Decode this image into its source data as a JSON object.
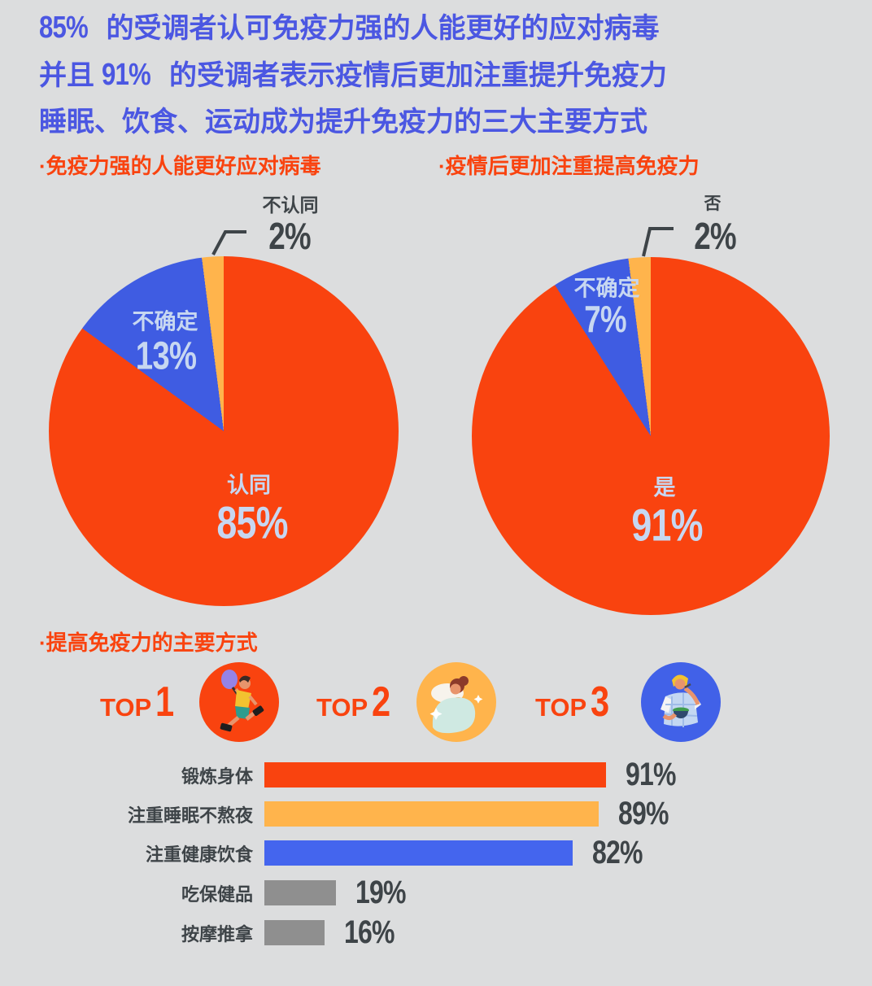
{
  "colors": {
    "background": "#DCDDDE",
    "title_blue": "#4B57E2",
    "accent_orange": "#F9430F",
    "pie_blue": "#3F5CE2",
    "bar_blue": "#4465EE",
    "yellow": "#FFB44C",
    "gray_bar": "#8F8F8F",
    "dark_text": "#3E4448",
    "light_text": "#C7D7F1"
  },
  "title": {
    "line1_num": "85%",
    "line1_text": " 的受调者认可免疫力强的人能更好的应对病毒",
    "line2_pre": "并且 ",
    "line2_num": "91%",
    "line2_text": " 的受调者表示疫情后更加注重提升免疫力",
    "line3_text": "睡眠、饮食、运动成为提升免疫力的三大主要方式"
  },
  "sections": {
    "pie1_header": "·免疫力强的人能更好应对病毒",
    "pie2_header": "·疫情后更加注重提高免疫力",
    "bar_header": "·提高免疫力的主要方式"
  },
  "tops": [
    {
      "label": "TOP",
      "rank": "1",
      "icon": "exercise-person-icon",
      "circle_color": "#F9430F"
    },
    {
      "label": "TOP",
      "rank": "2",
      "icon": "sleeping-person-icon",
      "circle_color": "#FFB44C"
    },
    {
      "label": "TOP",
      "rank": "3",
      "icon": "eating-person-icon",
      "circle_color": "#4161E8"
    }
  ],
  "chart_data": [
    {
      "type": "pie",
      "title": "免疫力强的人能更好应对病毒",
      "start_angle_deg": 0,
      "direction": "clockwise",
      "slices": [
        {
          "label": "认同",
          "value": 85,
          "pct": "85%",
          "color": "#F9430F"
        },
        {
          "label": "不确定",
          "value": 13,
          "pct": "13%",
          "color": "#3F5CE2"
        },
        {
          "label": "不认同",
          "value": 2,
          "pct": "2%",
          "color": "#FFB44C"
        }
      ]
    },
    {
      "type": "pie",
      "title": "疫情后更加注重提高免疫力",
      "start_angle_deg": 0,
      "direction": "clockwise",
      "slices": [
        {
          "label": "是",
          "value": 91,
          "pct": "91%",
          "color": "#F9430F"
        },
        {
          "label": "不确定",
          "value": 7,
          "pct": "7%",
          "color": "#3F5CE2"
        },
        {
          "label": "否",
          "value": 2,
          "pct": "2%",
          "color": "#FFB44C"
        }
      ]
    },
    {
      "type": "bar",
      "title": "提高免疫力的主要方式",
      "orientation": "horizontal",
      "xlim": [
        0,
        100
      ],
      "categories": [
        "锻炼身体",
        "注重睡眠不熬夜",
        "注重健康饮食",
        "吃保健品",
        "按摩推拿"
      ],
      "values": [
        91,
        89,
        82,
        19,
        16
      ],
      "value_labels": [
        "91%",
        "89%",
        "82%",
        "19%",
        "16%"
      ],
      "colors": [
        "#F9430F",
        "#FFB44C",
        "#4465EE",
        "#8F8F8F",
        "#8F8F8F"
      ]
    }
  ]
}
